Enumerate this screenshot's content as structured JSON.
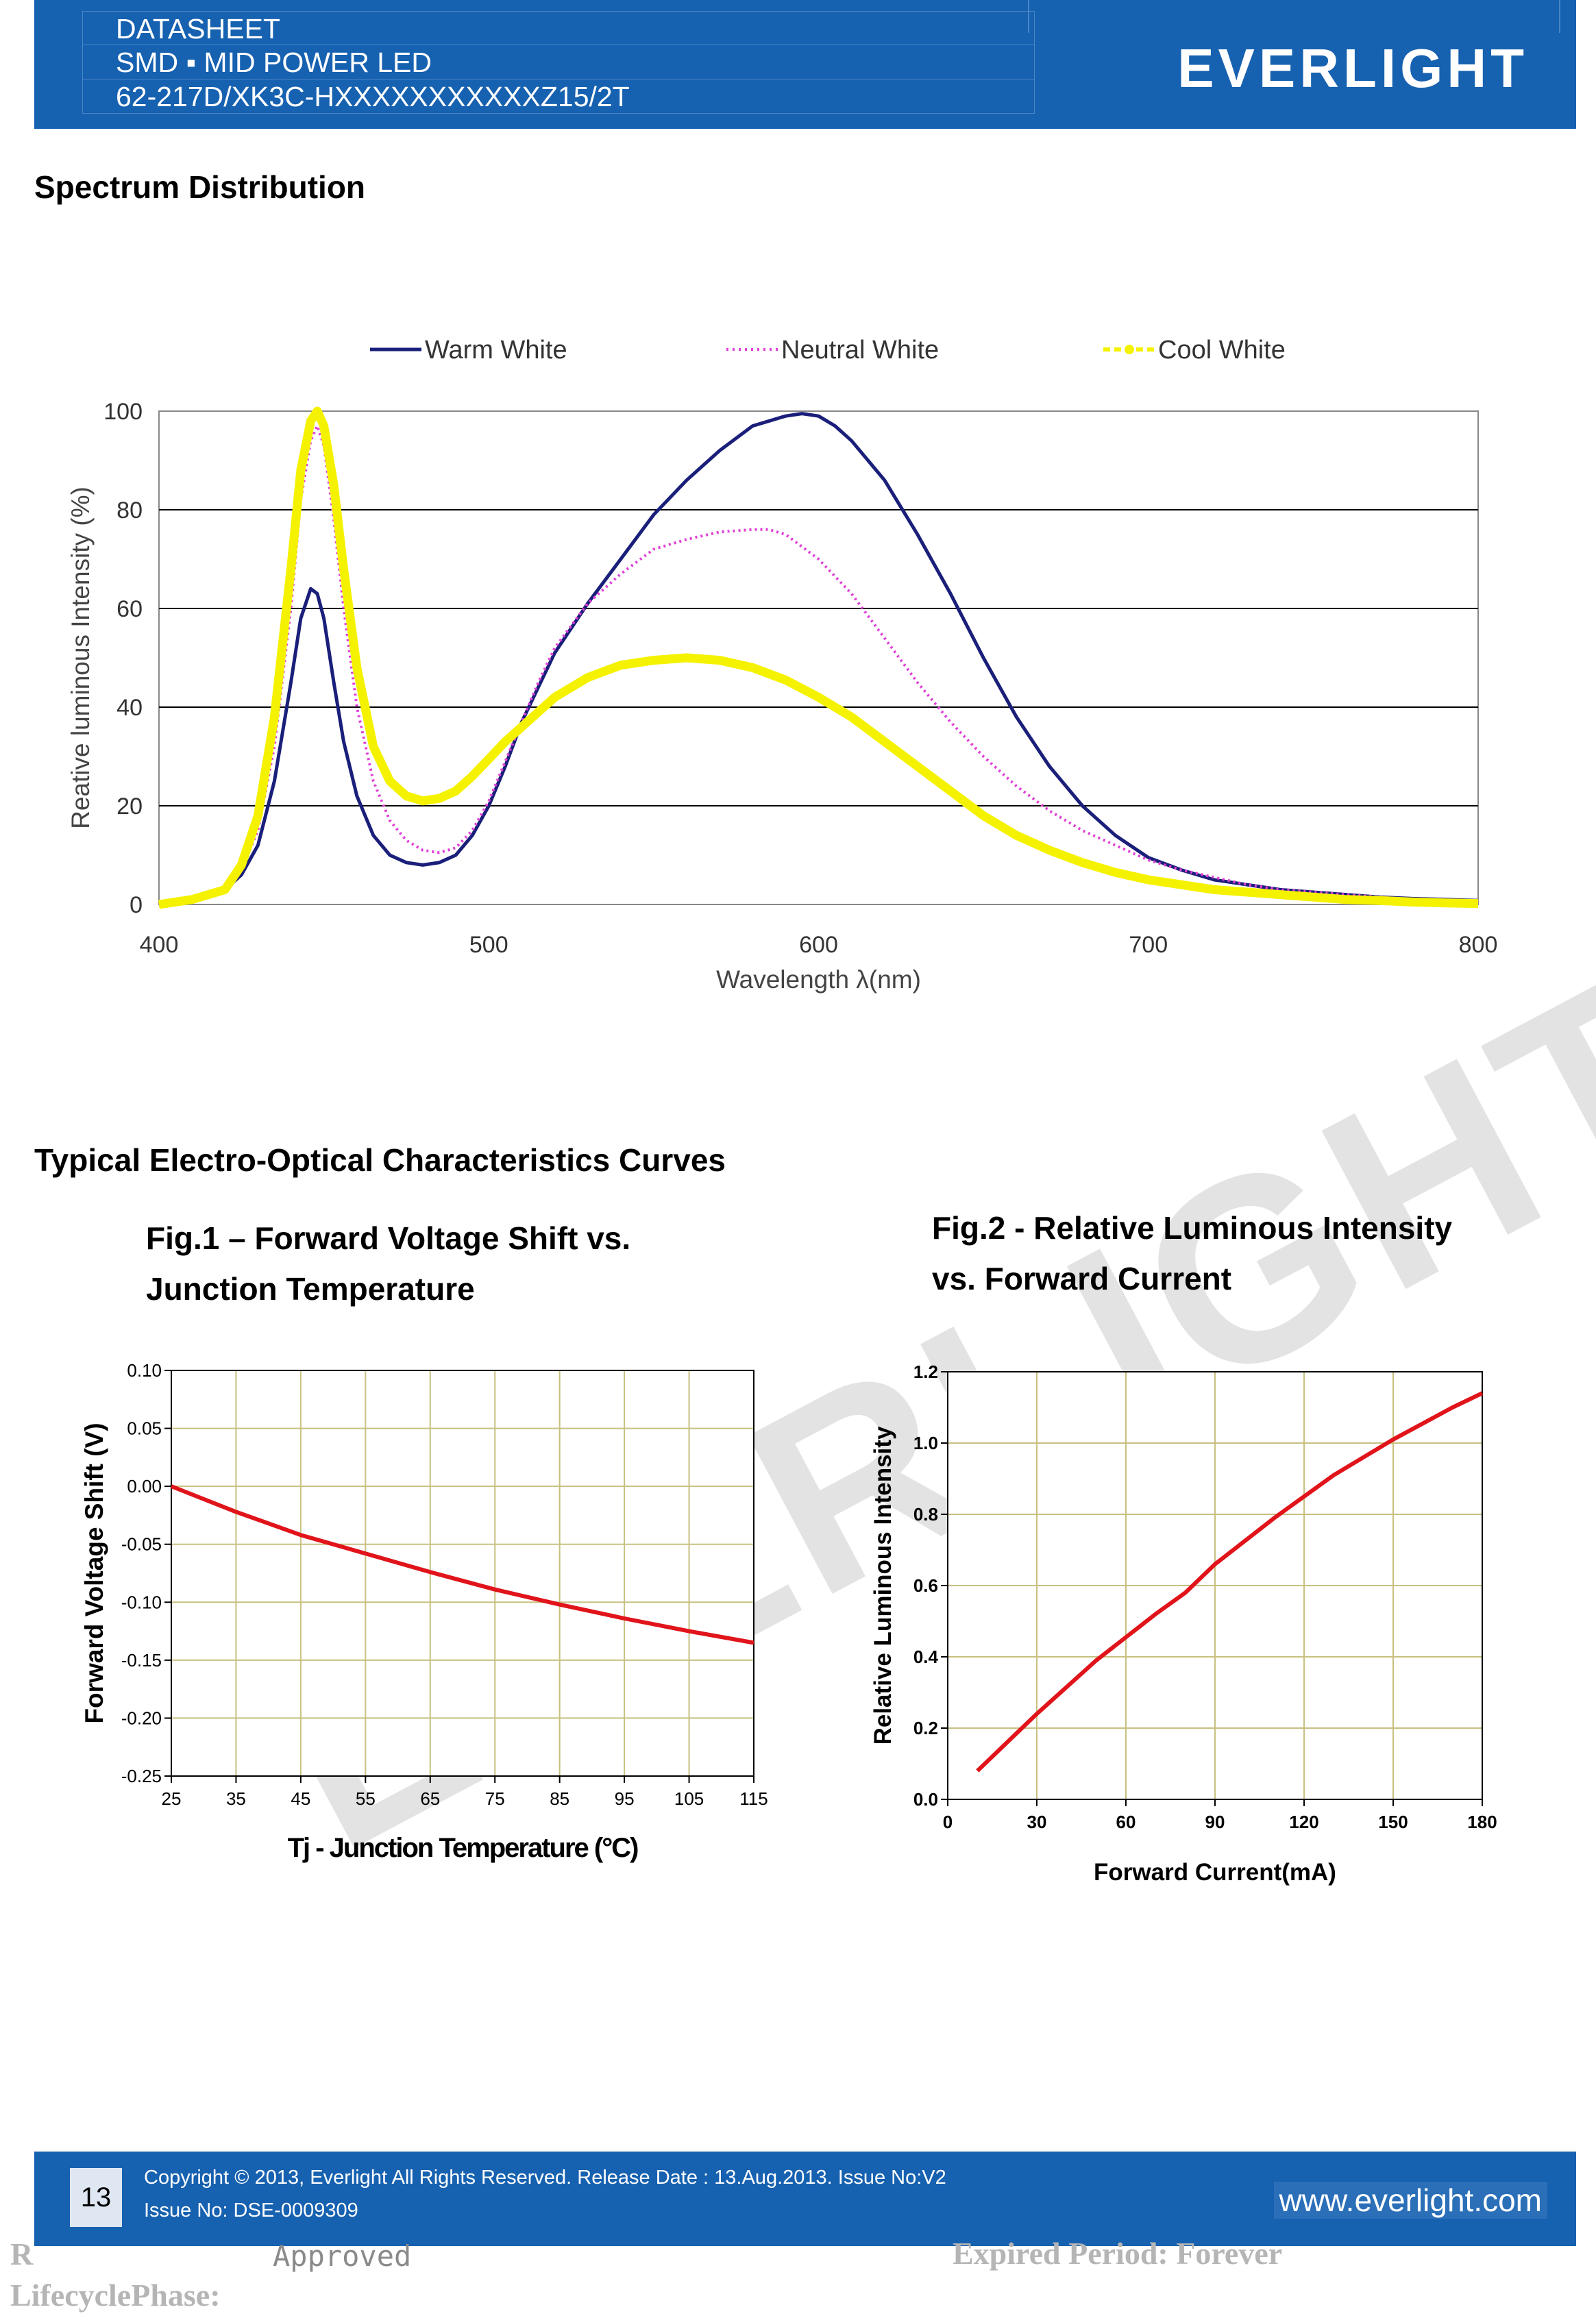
{
  "header": {
    "line1": "DATASHEET",
    "line2": "SMD ▪ MID POWER LED",
    "line3": "62-217D/XK3C-HXXXXXXXXXXXZ15/2T",
    "logo": "EVERLIGHT"
  },
  "spectrum": {
    "section_title": "Spectrum Distribution"
  },
  "eo": {
    "section_title": "Typical Electro-Optical Characteristics Curves",
    "fig1_title_line1": "Fig.1 – Forward Voltage Shift vs.",
    "fig1_title_line2": "Junction Temperature",
    "fig2_title_line1": "Fig.2 - Relative Luminous Intensity",
    "fig2_title_line2": "vs. Forward Current"
  },
  "watermark": "EVERLIGHT",
  "footer": {
    "page_number": "13",
    "copyright": "Copyright © 2013, Everlight All Rights Reserved. Release Date : 13.Aug.2013. Issue No:V2",
    "issue_no": "Issue No: DSE-0009309",
    "website": "www.everlight.com"
  },
  "bottom": {
    "left_line1": "R",
    "left_line2": "LifecyclePhase:",
    "approved": "Approved",
    "right": "Expired Period: Forever"
  },
  "chart_data": [
    {
      "type": "line",
      "title": "",
      "xlabel": "Wavelength  λ(nm)",
      "ylabel": "Reative  luminous  Intensity  (%)",
      "xlim": [
        400,
        800
      ],
      "ylim": [
        0,
        100
      ],
      "xticks": [
        400,
        500,
        600,
        700,
        800
      ],
      "yticks": [
        0,
        20,
        40,
        60,
        80,
        100
      ],
      "grid": "horizontal",
      "legend": "top",
      "series": [
        {
          "name": "Warm White",
          "color": "#1a1f7a",
          "style": "solid",
          "x": [
            400,
            410,
            420,
            425,
            430,
            435,
            440,
            443,
            446,
            448,
            450,
            453,
            456,
            460,
            465,
            470,
            475,
            480,
            485,
            490,
            495,
            500,
            505,
            510,
            515,
            520,
            530,
            540,
            550,
            560,
            570,
            580,
            590,
            595,
            600,
            605,
            610,
            620,
            630,
            640,
            650,
            660,
            670,
            680,
            690,
            700,
            710,
            720,
            730,
            740,
            750,
            760,
            770,
            780,
            790,
            800
          ],
          "y": [
            0,
            1,
            3,
            6,
            12,
            25,
            45,
            58,
            64,
            63,
            58,
            45,
            33,
            22,
            14,
            10,
            8.5,
            8,
            8.5,
            10,
            14,
            20,
            28,
            37,
            44,
            51,
            61,
            70,
            79,
            86,
            92,
            97,
            99,
            99.5,
            99,
            97,
            94,
            86,
            75,
            63,
            50,
            38,
            28,
            20,
            14,
            9.5,
            7,
            5,
            4,
            3,
            2.5,
            2,
            1.5,
            1.2,
            1,
            0.8
          ]
        },
        {
          "name": "Neutral White",
          "color": "#e23fd8",
          "style": "dotted",
          "x": [
            400,
            410,
            420,
            425,
            430,
            435,
            440,
            443,
            446,
            448,
            450,
            453,
            456,
            460,
            465,
            470,
            475,
            480,
            485,
            490,
            495,
            500,
            505,
            510,
            515,
            520,
            530,
            540,
            550,
            560,
            570,
            580,
            585,
            590,
            600,
            610,
            620,
            630,
            640,
            650,
            660,
            670,
            680,
            690,
            700,
            710,
            720,
            730,
            740,
            750,
            760,
            770,
            780,
            790,
            800
          ],
          "y": [
            0,
            1,
            3,
            7,
            15,
            32,
            60,
            82,
            94,
            97,
            93,
            78,
            60,
            40,
            25,
            17,
            13,
            11,
            10.5,
            11.5,
            15,
            21,
            29,
            37,
            45,
            52,
            61,
            67,
            72,
            74,
            75.5,
            76,
            76,
            75,
            70,
            63,
            54,
            45,
            37,
            30,
            24,
            19,
            15,
            12,
            9,
            7,
            5.5,
            4,
            3,
            2.5,
            2,
            1.5,
            1,
            0.8,
            0.5
          ]
        },
        {
          "name": "Cool White",
          "color": "#f5f200",
          "style": "solid-thick",
          "x": [
            400,
            410,
            420,
            425,
            430,
            435,
            440,
            443,
            446,
            448,
            450,
            453,
            456,
            460,
            465,
            470,
            475,
            480,
            485,
            490,
            495,
            500,
            505,
            510,
            515,
            520,
            530,
            540,
            550,
            560,
            570,
            580,
            590,
            600,
            610,
            620,
            630,
            640,
            650,
            660,
            670,
            680,
            690,
            700,
            710,
            720,
            730,
            740,
            750,
            760,
            770,
            780,
            790,
            800
          ],
          "y": [
            0,
            1,
            3,
            8,
            18,
            38,
            68,
            88,
            98,
            100,
            97,
            85,
            68,
            48,
            32,
            25,
            22,
            21,
            21.5,
            23,
            26,
            29.5,
            33,
            36,
            39,
            42,
            46,
            48.5,
            49.5,
            50,
            49.5,
            48,
            45.5,
            42,
            38,
            33,
            28,
            23,
            18,
            14,
            11,
            8.5,
            6.5,
            5,
            4,
            3,
            2.5,
            2,
            1.5,
            1,
            0.8,
            0.5,
            0.3,
            0.2
          ]
        }
      ]
    },
    {
      "type": "line",
      "title": "",
      "xlabel": "Tj - Junction Temperature (°C)",
      "ylabel": "Forward Voltage Shift (V)",
      "xlim": [
        25,
        115
      ],
      "ylim": [
        -0.25,
        0.1
      ],
      "xticks": [
        25,
        35,
        45,
        55,
        65,
        75,
        85,
        95,
        105,
        115
      ],
      "yticks": [
        "0.10",
        "0.05",
        "0.00",
        "-0.05",
        "-0.10",
        "-0.15",
        "-0.20",
        "-0.25"
      ],
      "grid": "both",
      "series": [
        {
          "color": "#e0141a",
          "x": [
            25,
            35,
            45,
            55,
            65,
            75,
            85,
            95,
            105,
            115
          ],
          "y": [
            0.0,
            -0.022,
            -0.042,
            -0.058,
            -0.074,
            -0.089,
            -0.102,
            -0.114,
            -0.125,
            -0.135
          ]
        }
      ]
    },
    {
      "type": "line",
      "title": "",
      "xlabel": "Forward Current(mA)",
      "ylabel": "Relative Luminous Intensity",
      "xlim": [
        0,
        180
      ],
      "ylim": [
        0,
        1.2
      ],
      "xticks": [
        0,
        30,
        60,
        90,
        120,
        150,
        180
      ],
      "yticks": [
        "0.0",
        "0.2",
        "0.4",
        "0.6",
        "0.8",
        "1.0",
        "1.2"
      ],
      "grid": "both",
      "series": [
        {
          "color": "#e0141a",
          "x": [
            10,
            30,
            50,
            70,
            80,
            90,
            110,
            130,
            150,
            170,
            180
          ],
          "y": [
            0.08,
            0.24,
            0.39,
            0.52,
            0.58,
            0.66,
            0.79,
            0.91,
            1.01,
            1.1,
            1.14
          ]
        }
      ]
    }
  ]
}
